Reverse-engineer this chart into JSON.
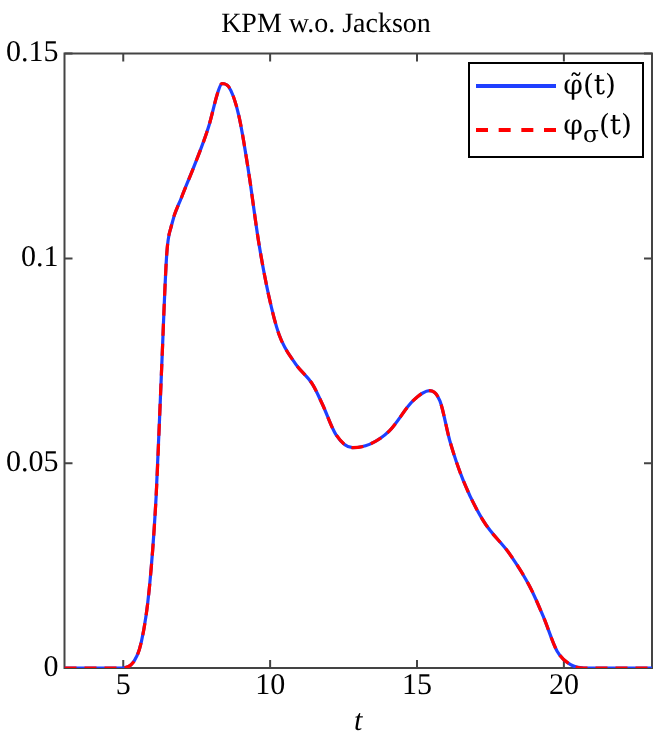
{
  "chart_data": {
    "type": "line",
    "title": "KPM w.o. Jackson",
    "xlabel": "t",
    "x": [
      3,
      4.93,
      5.27,
      5.62,
      5.89,
      6.12,
      6.3,
      6.48,
      6.64,
      6.99,
      7.44,
      7.9,
      8.24,
      8.36,
      8.58,
      8.93,
      9.27,
      9.61,
      9.95,
      10.3,
      10.87,
      11.44,
      11.78,
      12.24,
      12.81,
      13.38,
      14.06,
      14.86,
      15.43,
      15.78,
      16.12,
      16.58,
      17.26,
      18.17,
      18.86,
      19.32,
      19.77,
      20.23,
      20.68,
      23
    ],
    "series": [
      {
        "name": "φ̃(t)",
        "color": "#1f3fff",
        "line_style": "solid",
        "values": [
          0,
          0,
          0.0008,
          0.0065,
          0.0196,
          0.042,
          0.072,
          0.101,
          0.108,
          0.115,
          0.123,
          0.132,
          0.141,
          0.1427,
          0.142,
          0.135,
          0.121,
          0.104,
          0.091,
          0.0815,
          0.0742,
          0.0693,
          0.0644,
          0.057,
          0.0538,
          0.0546,
          0.0579,
          0.0652,
          0.0677,
          0.0652,
          0.0554,
          0.0457,
          0.0359,
          0.0277,
          0.0196,
          0.0122,
          0.0041,
          0.0008,
          0,
          0
        ]
      },
      {
        "name": "φ$_{σ}$(t)",
        "color": "#ff0000",
        "line_style": "dashed",
        "values": [
          0,
          0,
          0.0008,
          0.0065,
          0.0196,
          0.042,
          0.072,
          0.101,
          0.108,
          0.115,
          0.123,
          0.132,
          0.141,
          0.1427,
          0.142,
          0.135,
          0.121,
          0.104,
          0.091,
          0.0815,
          0.0742,
          0.0693,
          0.0644,
          0.057,
          0.0538,
          0.0546,
          0.0579,
          0.0652,
          0.0677,
          0.0652,
          0.0554,
          0.0457,
          0.0359,
          0.0277,
          0.0196,
          0.0122,
          0.0041,
          0.0008,
          0,
          0
        ]
      }
    ],
    "xlim": [
      3,
      23
    ],
    "xticks": [
      5,
      10,
      15,
      20
    ],
    "ylim": [
      0,
      0.15
    ],
    "yticks": [
      0,
      0.05,
      0.1,
      0.15
    ],
    "legend": "top right",
    "marker": "none"
  }
}
